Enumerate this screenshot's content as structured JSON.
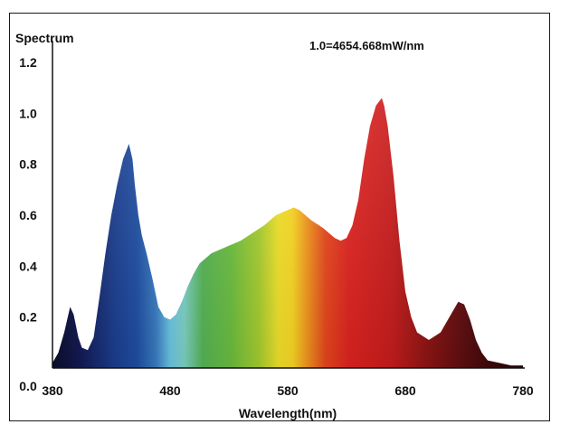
{
  "chart_data": {
    "type": "area",
    "title": "",
    "ylabel": "Spectrum",
    "xlabel": "Wavelength(nm)",
    "annotation": "1.0=4654.668mW/nm",
    "xlim": [
      380,
      780
    ],
    "ylim": [
      0,
      1.2
    ],
    "xticks": [
      "380",
      "480",
      "580",
      "680",
      "780"
    ],
    "yticks": [
      "0.0",
      "0.2",
      "0.4",
      "0.6",
      "0.8",
      "1.0",
      "1.2"
    ],
    "grid": false,
    "fill": "wavelength-rainbow",
    "series": [
      {
        "x": [
          380,
          385,
          390,
          395,
          398,
          402,
          405,
          410,
          415,
          420,
          425,
          430,
          435,
          440,
          445,
          448,
          450,
          453,
          456,
          460,
          465,
          470,
          475,
          480,
          485,
          490,
          495,
          500,
          505,
          510,
          515,
          520,
          525,
          530,
          540,
          550,
          560,
          570,
          580,
          585,
          590,
          600,
          610,
          620,
          625,
          630,
          635,
          640,
          645,
          650,
          655,
          660,
          662,
          665,
          670,
          675,
          680,
          685,
          690,
          700,
          710,
          720,
          725,
          730,
          735,
          740,
          745,
          750,
          760,
          770,
          780
        ],
        "y": [
          0.02,
          0.06,
          0.14,
          0.24,
          0.21,
          0.12,
          0.08,
          0.07,
          0.12,
          0.28,
          0.45,
          0.6,
          0.72,
          0.82,
          0.88,
          0.82,
          0.72,
          0.6,
          0.52,
          0.45,
          0.35,
          0.24,
          0.2,
          0.19,
          0.21,
          0.26,
          0.32,
          0.37,
          0.41,
          0.43,
          0.45,
          0.46,
          0.47,
          0.48,
          0.5,
          0.53,
          0.56,
          0.6,
          0.62,
          0.63,
          0.62,
          0.58,
          0.55,
          0.51,
          0.5,
          0.51,
          0.56,
          0.66,
          0.82,
          0.95,
          1.03,
          1.06,
          1.03,
          0.95,
          0.75,
          0.5,
          0.3,
          0.2,
          0.14,
          0.11,
          0.14,
          0.22,
          0.26,
          0.25,
          0.19,
          0.11,
          0.06,
          0.03,
          0.02,
          0.01,
          0.01
        ]
      }
    ]
  }
}
